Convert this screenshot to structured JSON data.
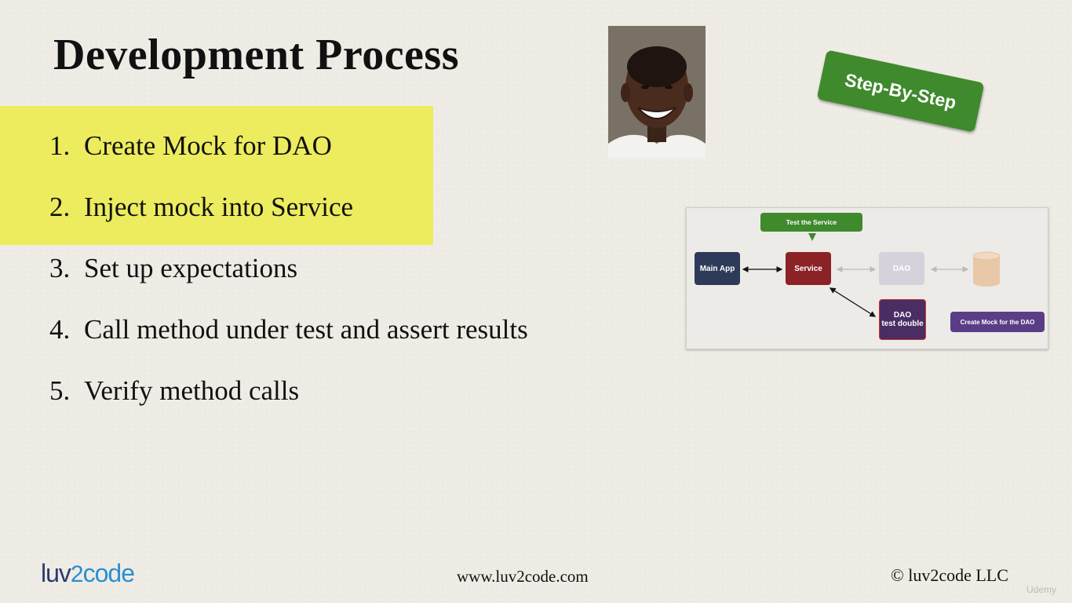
{
  "slide": {
    "title": "Development Process",
    "steps": [
      {
        "num": "1.",
        "text": "Create Mock for DAO",
        "highlighted": true
      },
      {
        "num": "2.",
        "text": "Inject mock into Service",
        "highlighted": true
      },
      {
        "num": "3.",
        "text": "Set up expectations",
        "highlighted": false
      },
      {
        "num": "4.",
        "text": "Call method under test and assert results",
        "highlighted": false
      },
      {
        "num": "5.",
        "text": "Verify method calls",
        "highlighted": false
      }
    ],
    "highlight_color": "#ecec5e",
    "badge": {
      "text": "Step-By-Step",
      "color": "#3f8a2c"
    }
  },
  "diagram": {
    "callout_top": "Test the Service",
    "main_app": "Main App",
    "service": "Service",
    "dao": "DAO",
    "dao_double_line1": "DAO",
    "dao_double_line2": "test double",
    "callout_right": "Create Mock for the DAO",
    "colors": {
      "main_app": "#2e3a5a",
      "service": "#8b2226",
      "dao_faded": "#d6d2dc",
      "dao_double": "#4a2e63",
      "callout_top": "#3f8a2c",
      "callout_right": "#5a3d86",
      "database": "#e9c8a8"
    }
  },
  "footer": {
    "logo_part1": "luv",
    "logo_part2": "2",
    "logo_part3": "code",
    "url": "www.luv2code.com",
    "copyright": "© luv2code LLC",
    "watermark": "Udemy"
  }
}
